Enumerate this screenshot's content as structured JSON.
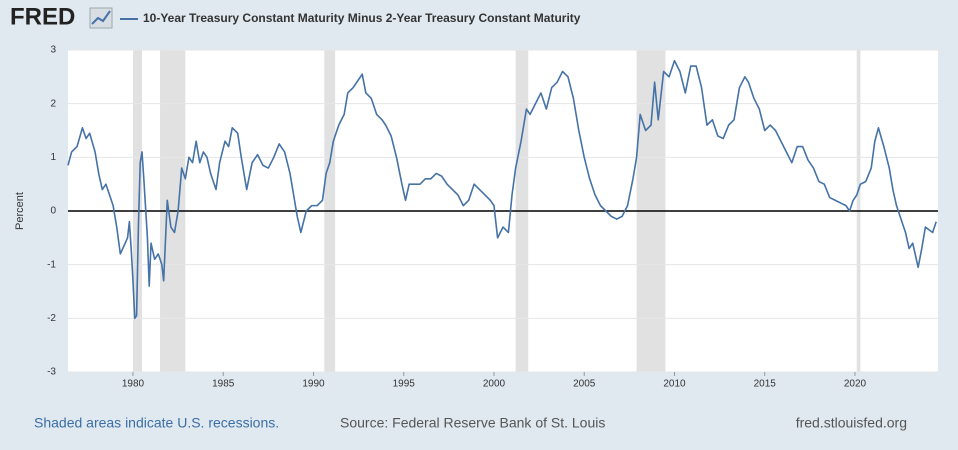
{
  "chart_data": {
    "type": "line",
    "logo": "FRED",
    "ylabel": "Percent",
    "footer_left": "Shaded areas indicate U.S. recessions.",
    "footer_center": "Source: Federal Reserve Bank of St. Louis",
    "footer_right": "fred.stlouisfed.org",
    "xlim": [
      1976.4,
      2024.6
    ],
    "xticks": [
      1980,
      1985,
      1990,
      1995,
      2000,
      2005,
      2010,
      2015,
      2020
    ],
    "ylim": [
      -3,
      3
    ],
    "yticks": [
      -3,
      -2,
      -1,
      0,
      1,
      2,
      3
    ],
    "grid": true,
    "recessions": [
      [
        1980.0,
        1980.5
      ],
      [
        1981.5,
        1982.9
      ],
      [
        1990.6,
        1991.2
      ],
      [
        2001.2,
        2001.9
      ],
      [
        2007.9,
        2009.5
      ],
      [
        2020.1,
        2020.3
      ]
    ],
    "recession_color": "#e1e1e1",
    "series": [
      {
        "name": "10-Year Treasury Constant Maturity Minus 2-Year Treasury Constant Maturity",
        "color": "#4572a7",
        "x": [
          1976.4,
          1976.6,
          1976.9,
          1977.2,
          1977.4,
          1977.6,
          1977.9,
          1978.1,
          1978.3,
          1978.5,
          1978.7,
          1978.9,
          1979.1,
          1979.3,
          1979.5,
          1979.7,
          1979.8,
          1979.9,
          1980.0,
          1980.1,
          1980.2,
          1980.3,
          1980.4,
          1980.5,
          1980.6,
          1980.8,
          1980.9,
          1981.0,
          1981.2,
          1981.4,
          1981.6,
          1981.7,
          1981.9,
          1982.1,
          1982.3,
          1982.5,
          1982.7,
          1982.9,
          1983.1,
          1983.3,
          1983.5,
          1983.7,
          1983.9,
          1984.1,
          1984.3,
          1984.6,
          1984.8,
          1985.1,
          1985.3,
          1985.5,
          1985.8,
          1986.0,
          1986.3,
          1986.6,
          1986.9,
          1987.2,
          1987.5,
          1987.8,
          1988.1,
          1988.4,
          1988.7,
          1988.9,
          1989.1,
          1989.3,
          1989.6,
          1989.9,
          1990.2,
          1990.5,
          1990.7,
          1990.9,
          1991.1,
          1991.4,
          1991.7,
          1991.9,
          1992.2,
          1992.5,
          1992.7,
          1992.9,
          1993.2,
          1993.5,
          1993.8,
          1994.0,
          1994.3,
          1994.6,
          1994.9,
          1995.1,
          1995.3,
          1995.6,
          1995.9,
          1996.2,
          1996.5,
          1996.8,
          1997.1,
          1997.4,
          1997.7,
          1998.0,
          1998.3,
          1998.6,
          1998.9,
          1999.2,
          1999.5,
          1999.8,
          2000.0,
          2000.2,
          2000.5,
          2000.8,
          2001.0,
          2001.2,
          2001.5,
          2001.8,
          2002.0,
          2002.3,
          2002.6,
          2002.9,
          2003.2,
          2003.5,
          2003.8,
          2004.1,
          2004.4,
          2004.7,
          2005.0,
          2005.3,
          2005.6,
          2005.9,
          2006.2,
          2006.5,
          2006.8,
          2007.1,
          2007.4,
          2007.7,
          2007.9,
          2008.1,
          2008.4,
          2008.7,
          2008.9,
          2009.1,
          2009.4,
          2009.7,
          2010.0,
          2010.3,
          2010.6,
          2010.9,
          2011.2,
          2011.5,
          2011.8,
          2012.1,
          2012.4,
          2012.7,
          2013.0,
          2013.3,
          2013.6,
          2013.9,
          2014.1,
          2014.4,
          2014.7,
          2015.0,
          2015.3,
          2015.6,
          2015.9,
          2016.2,
          2016.5,
          2016.8,
          2017.1,
          2017.4,
          2017.7,
          2018.0,
          2018.3,
          2018.6,
          2018.9,
          2019.2,
          2019.5,
          2019.7,
          2019.9,
          2020.1,
          2020.3,
          2020.6,
          2020.9,
          2021.1,
          2021.3,
          2021.6,
          2021.9,
          2022.1,
          2022.3,
          2022.5,
          2022.8,
          2023.0,
          2023.2,
          2023.5,
          2023.7,
          2023.9,
          2024.1,
          2024.3,
          2024.5
        ],
        "values": [
          0.85,
          1.1,
          1.2,
          1.55,
          1.35,
          1.45,
          1.1,
          0.7,
          0.4,
          0.5,
          0.3,
          0.1,
          -0.3,
          -0.8,
          -0.65,
          -0.5,
          -0.2,
          -0.7,
          -1.3,
          -2.0,
          -1.95,
          -0.3,
          0.9,
          1.1,
          0.6,
          -0.5,
          -1.4,
          -0.6,
          -0.9,
          -0.8,
          -1.0,
          -1.3,
          0.2,
          -0.3,
          -0.4,
          0.0,
          0.8,
          0.6,
          1.0,
          0.9,
          1.3,
          0.9,
          1.1,
          1.0,
          0.7,
          0.4,
          0.9,
          1.3,
          1.2,
          1.55,
          1.45,
          1.0,
          0.4,
          0.9,
          1.05,
          0.85,
          0.8,
          1.0,
          1.25,
          1.1,
          0.7,
          0.3,
          -0.1,
          -0.4,
          0.0,
          0.1,
          0.1,
          0.2,
          0.7,
          0.9,
          1.3,
          1.6,
          1.8,
          2.2,
          2.3,
          2.45,
          2.55,
          2.2,
          2.1,
          1.8,
          1.7,
          1.6,
          1.4,
          1.0,
          0.5,
          0.2,
          0.5,
          0.5,
          0.5,
          0.6,
          0.6,
          0.7,
          0.65,
          0.5,
          0.4,
          0.3,
          0.1,
          0.2,
          0.5,
          0.4,
          0.3,
          0.2,
          0.1,
          -0.5,
          -0.3,
          -0.4,
          0.3,
          0.8,
          1.3,
          1.9,
          1.8,
          2.0,
          2.2,
          1.9,
          2.3,
          2.4,
          2.6,
          2.5,
          2.1,
          1.5,
          1.0,
          0.6,
          0.3,
          0.1,
          0.0,
          -0.1,
          -0.15,
          -0.1,
          0.1,
          0.6,
          1.0,
          1.8,
          1.5,
          1.6,
          2.4,
          1.7,
          2.6,
          2.5,
          2.8,
          2.6,
          2.2,
          2.7,
          2.7,
          2.3,
          1.6,
          1.7,
          1.4,
          1.35,
          1.6,
          1.7,
          2.3,
          2.5,
          2.4,
          2.1,
          1.9,
          1.5,
          1.6,
          1.5,
          1.3,
          1.1,
          0.9,
          1.2,
          1.2,
          0.95,
          0.8,
          0.55,
          0.5,
          0.25,
          0.2,
          0.15,
          0.1,
          0.0,
          0.2,
          0.3,
          0.5,
          0.55,
          0.8,
          1.3,
          1.55,
          1.2,
          0.8,
          0.4,
          0.1,
          -0.1,
          -0.4,
          -0.7,
          -0.6,
          -1.05,
          -0.7,
          -0.3,
          -0.35,
          -0.4,
          -0.2
        ]
      }
    ]
  }
}
